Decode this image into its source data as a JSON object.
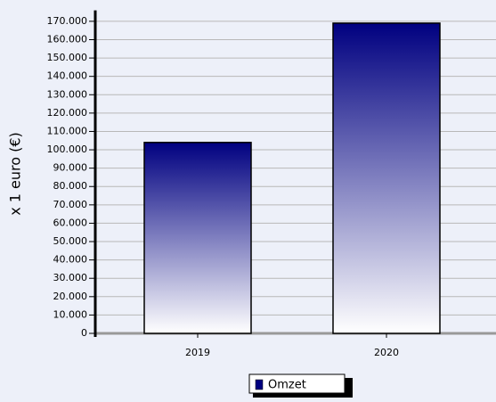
{
  "chart_data": {
    "type": "bar",
    "y_label": "x 1 euro (€)",
    "categories": [
      "2019",
      "2020"
    ],
    "series": [
      {
        "name": "Omzet",
        "color": "#000080",
        "values": [
          104000,
          169000
        ]
      }
    ],
    "ylim": [
      0,
      175000
    ],
    "yticks": [
      0,
      {
        "value": 10000,
        "label": "10.000"
      },
      {
        "value": 20000,
        "label": "20.000"
      },
      {
        "value": 30000,
        "label": "30.000"
      },
      {
        "value": 40000,
        "label": "40.000"
      },
      {
        "value": 50000,
        "label": "50.000"
      },
      {
        "value": 60000,
        "label": "60.000"
      },
      {
        "value": 70000,
        "label": "70.000"
      },
      {
        "value": 80000,
        "label": "80.000"
      },
      {
        "value": 90000,
        "label": "90.000"
      },
      {
        "value": 100000,
        "label": "100.000"
      },
      {
        "value": 110000,
        "label": "110.000"
      },
      {
        "value": 120000,
        "label": "120.000"
      },
      {
        "value": 130000,
        "label": "130.000"
      },
      {
        "value": 140000,
        "label": "140.000"
      },
      {
        "value": 150000,
        "label": "150.000"
      },
      {
        "value": 160000,
        "label": "160.000"
      },
      {
        "value": 170000,
        "label": "170.000"
      }
    ],
    "grid": true
  }
}
